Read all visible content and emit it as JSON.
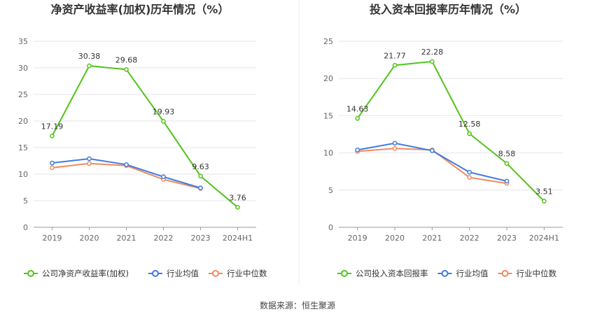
{
  "source": "数据来源：恒生聚源",
  "chart_data": [
    {
      "type": "line",
      "title": "净资产收益率(加权)历年情况（%）",
      "categories": [
        "2019",
        "2020",
        "2021",
        "2022",
        "2023",
        "2024H1"
      ],
      "yticks": [
        0,
        5,
        10,
        15,
        20,
        25,
        30,
        35
      ],
      "ylim": [
        0,
        35
      ],
      "grid": true,
      "legend_position": "bottom",
      "series": [
        {
          "name": "公司净资产收益率(加权)",
          "color": "#52c41a",
          "values": [
            17.19,
            30.38,
            29.68,
            19.93,
            9.63,
            3.76
          ],
          "labels": [
            "17.19",
            "30.38",
            "29.68",
            "19.93",
            "9.63",
            "3.76"
          ]
        },
        {
          "name": "行业均值",
          "color": "#3f7be0",
          "values": [
            12.1,
            12.9,
            11.8,
            9.5,
            7.4,
            null
          ]
        },
        {
          "name": "行业中位数",
          "color": "#f08a5d",
          "values": [
            11.2,
            12.0,
            11.6,
            9.0,
            7.3,
            null
          ]
        }
      ]
    },
    {
      "type": "line",
      "title": "投入资本回报率历年情况（%）",
      "categories": [
        "2019",
        "2020",
        "2021",
        "2022",
        "2023",
        "2024H1"
      ],
      "yticks": [
        0,
        5,
        10,
        15,
        20,
        25
      ],
      "ylim": [
        0,
        25
      ],
      "grid": true,
      "legend_position": "bottom",
      "series": [
        {
          "name": "公司投入资本回报率",
          "color": "#52c41a",
          "values": [
            14.63,
            21.77,
            22.28,
            12.58,
            8.58,
            3.51
          ],
          "labels": [
            "14.63",
            "21.77",
            "22.28",
            "12.58",
            "8.58",
            "3.51"
          ]
        },
        {
          "name": "行业均值",
          "color": "#3f7be0",
          "values": [
            10.4,
            11.3,
            10.3,
            7.4,
            6.2,
            null
          ]
        },
        {
          "name": "行业中位数",
          "color": "#f08a5d",
          "values": [
            10.2,
            10.6,
            10.4,
            6.7,
            5.9,
            null
          ]
        }
      ]
    }
  ]
}
